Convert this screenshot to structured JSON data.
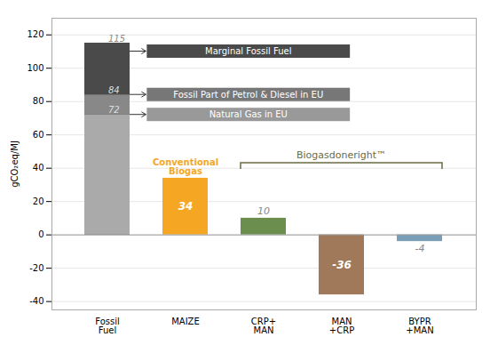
{
  "chart_data": {
    "type": "bar",
    "categories": [
      "Fossil\nFuel",
      "MAIZE",
      "CRP+\nMAN",
      "MAN\n+CRP",
      "BYPR\n+MAN"
    ],
    "values": [
      115,
      34,
      10,
      -36,
      -4
    ],
    "colors": [
      "#555555",
      "#F5A623",
      "#6B8E4E",
      "#A0785A",
      "#7A9EB5"
    ],
    "segments": [
      {
        "category": "Fossil\nFuel",
        "value": 72,
        "color": "#AAAAAA"
      },
      {
        "category": "Fossil\nFuel",
        "value": 12,
        "color": "#888888"
      },
      {
        "category": "Fossil\nFuel",
        "value": 31,
        "color": "#4A4A4A"
      }
    ],
    "level_labels": [
      84,
      72
    ],
    "data_labels": true,
    "ylabel": "gCO₂eq/MJ",
    "ylim": [
      -45,
      130
    ],
    "yticks": [
      -40,
      -20,
      0,
      20,
      40,
      60,
      80,
      100,
      120
    ],
    "grid": true,
    "callouts": [
      {
        "text": "Marginal Fossil Fuel",
        "y": 110,
        "color": "#4A4A4A",
        "text_color": "white"
      },
      {
        "text": "Fossil Part of Petrol & Diesel in EU",
        "y": 84,
        "color": "#777777",
        "text_color": "white"
      },
      {
        "text": "Natural Gas in EU",
        "y": 72,
        "color": "#999999",
        "text_color": "white"
      }
    ],
    "annotations": [
      {
        "text": "Conventional\nBiogas",
        "category": "MAIZE",
        "color": "#F5A623"
      }
    ],
    "bracket": {
      "text": "Biogasdoneright™",
      "color": "#6B6B44",
      "y": 43,
      "from": "CRP+\nMAN",
      "to": "BYPR\n+MAN"
    }
  }
}
